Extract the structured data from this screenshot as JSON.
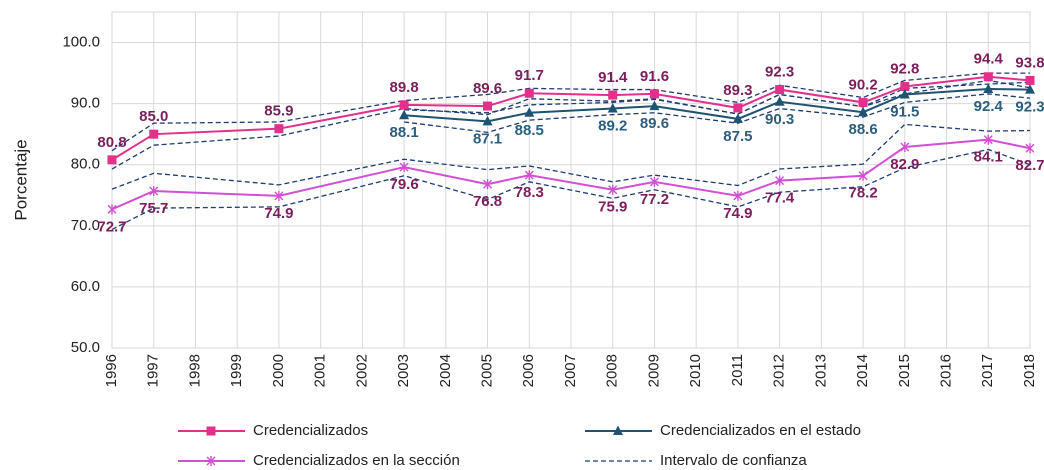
{
  "chart_data": {
    "type": "line",
    "y_label": "Porcentaje",
    "x": [
      1996,
      1997,
      2000,
      2003,
      2005,
      2006,
      2008,
      2009,
      2011,
      2012,
      2014,
      2015,
      2017,
      2018
    ],
    "series": [
      {
        "name": "Credencializados",
        "color": "#e3308b",
        "marker": "square",
        "values": [
          80.8,
          85.0,
          85.9,
          89.8,
          89.6,
          91.7,
          91.4,
          91.6,
          89.3,
          92.3,
          90.2,
          92.8,
          94.4,
          93.8
        ],
        "value_labels": [
          "80.8",
          "85.0",
          "85.9",
          "89.8",
          "89.6",
          "91.7",
          "91.4",
          "91.6",
          "89.3",
          "92.3",
          "90.2",
          "92.8",
          "94.4",
          "93.8"
        ]
      },
      {
        "name": "Credencializados en el estado",
        "color": "#1f5373",
        "marker": "triangle",
        "values": [
          null,
          null,
          null,
          88.1,
          87.1,
          88.5,
          89.2,
          89.6,
          87.5,
          90.3,
          88.6,
          91.5,
          92.4,
          92.3
        ],
        "value_labels": [
          null,
          null,
          null,
          "88.1",
          "87.1",
          "88.5",
          "89.2",
          "89.6",
          "87.5",
          "90.3",
          "88.6",
          "91.5",
          "92.4",
          "92.3"
        ]
      },
      {
        "name": "Credencializados en la sección",
        "color": "#d24fd6",
        "marker": "star",
        "values": [
          72.7,
          75.7,
          74.9,
          79.6,
          76.8,
          78.3,
          75.9,
          77.2,
          74.9,
          77.4,
          78.2,
          82.9,
          84.1,
          82.7
        ],
        "value_labels": [
          "72.7",
          "75.7",
          "74.9",
          "79.6",
          "76.8",
          "78.3",
          "75.9",
          "77.2",
          "74.9",
          "77.4",
          "78.2",
          "82.9",
          "84.1",
          "82.7"
        ]
      }
    ],
    "intervals": {
      "name": "Intervalo de confianza",
      "color": "#1f3c73",
      "lines": [
        {
          "upper": [
            82.3,
            86.8,
            87.0,
            90.5,
            91.5,
            92.5,
            92.3,
            92.3,
            90.2,
            93.0,
            91.0,
            93.8,
            95.0,
            95.0
          ],
          "lower": [
            79.3,
            83.2,
            84.7,
            89.2,
            88.2,
            90.8,
            90.4,
            90.8,
            88.3,
            91.5,
            89.5,
            91.6,
            93.8,
            92.6
          ]
        },
        {
          "upper": [
            null,
            null,
            null,
            89.0,
            88.5,
            89.8,
            90.2,
            90.7,
            88.3,
            91.5,
            89.5,
            92.5,
            93.2,
            93.5
          ],
          "lower": [
            null,
            null,
            null,
            87.0,
            85.3,
            87.3,
            88.2,
            88.5,
            86.8,
            89.2,
            87.8,
            90.2,
            91.6,
            90.9
          ]
        },
        {
          "upper": [
            76.0,
            78.6,
            76.7,
            80.9,
            79.2,
            79.8,
            77.2,
            78.3,
            76.6,
            79.3,
            80.1,
            86.6,
            85.5,
            85.6
          ],
          "lower": [
            69.4,
            72.9,
            73.1,
            78.2,
            74.3,
            77.2,
            74.5,
            75.9,
            73.1,
            75.5,
            76.4,
            79.5,
            82.5,
            80.0
          ]
        }
      ]
    },
    "xlim": [
      1996,
      2018
    ],
    "xticks": [
      1996,
      1997,
      1998,
      1999,
      2000,
      2001,
      2002,
      2003,
      2004,
      2005,
      2006,
      2007,
      2008,
      2009,
      2010,
      2011,
      2012,
      2013,
      2014,
      2015,
      2016,
      2017,
      2018
    ],
    "ylim": [
      50,
      105
    ],
    "yticks": [
      {
        "value": 50,
        "label": "50.0"
      },
      {
        "value": 60,
        "label": "60.0"
      },
      {
        "value": 70,
        "label": "70.0"
      },
      {
        "value": 80,
        "label": "80.0"
      },
      {
        "value": 90,
        "label": "90.0"
      },
      {
        "value": 100,
        "label": "100.0"
      }
    ],
    "grid": true
  }
}
